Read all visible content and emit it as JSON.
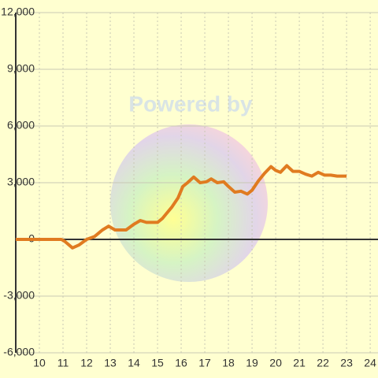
{
  "chart_data": {
    "type": "line",
    "watermark": "Powered by",
    "x": [
      9,
      10.93,
      11.07,
      11.4,
      11.67,
      12,
      12.33,
      12.67,
      12.93,
      13.2,
      13.67,
      14,
      14.27,
      14.53,
      15,
      15.2,
      15.4,
      15.6,
      15.87,
      16.07,
      16.27,
      16.53,
      16.8,
      17.07,
      17.27,
      17.53,
      17.8,
      18,
      18.27,
      18.53,
      18.8,
      19,
      19.27,
      19.53,
      19.8,
      20,
      20.2,
      20.47,
      20.73,
      21,
      21.27,
      21.53,
      21.8,
      22.07,
      22.33,
      22.6,
      23
    ],
    "series": [
      {
        "color": "#e07b20",
        "values": [
          0,
          0,
          -100,
          -450,
          -300,
          0,
          150,
          500,
          700,
          500,
          500,
          800,
          1000,
          900,
          900,
          1100,
          1400,
          1700,
          2200,
          2800,
          3000,
          3300,
          3000,
          3050,
          3200,
          3000,
          3050,
          2800,
          2500,
          2550,
          2400,
          2600,
          3100,
          3500,
          3850,
          3650,
          3550,
          3900,
          3600,
          3600,
          3450,
          3350,
          3550,
          3400,
          3400,
          3350,
          3350
        ]
      }
    ],
    "xlim": [
      9,
      24.33
    ],
    "xticks": [
      10,
      11,
      12,
      13,
      14,
      15,
      16,
      17,
      18,
      19,
      20,
      21,
      22,
      23,
      24
    ],
    "ylim": [
      -6000,
      12000
    ],
    "yticks": [
      {
        "value": -6000,
        "label": "-6,000"
      },
      {
        "value": -3000,
        "label": "-3,000"
      },
      0,
      {
        "value": 3000,
        "label": "3,000"
      },
      {
        "value": 6000,
        "label": "6,000"
      },
      {
        "value": 9000,
        "label": "9,000"
      },
      {
        "value": 12000,
        "label": "12,000"
      }
    ],
    "grid": true
  }
}
